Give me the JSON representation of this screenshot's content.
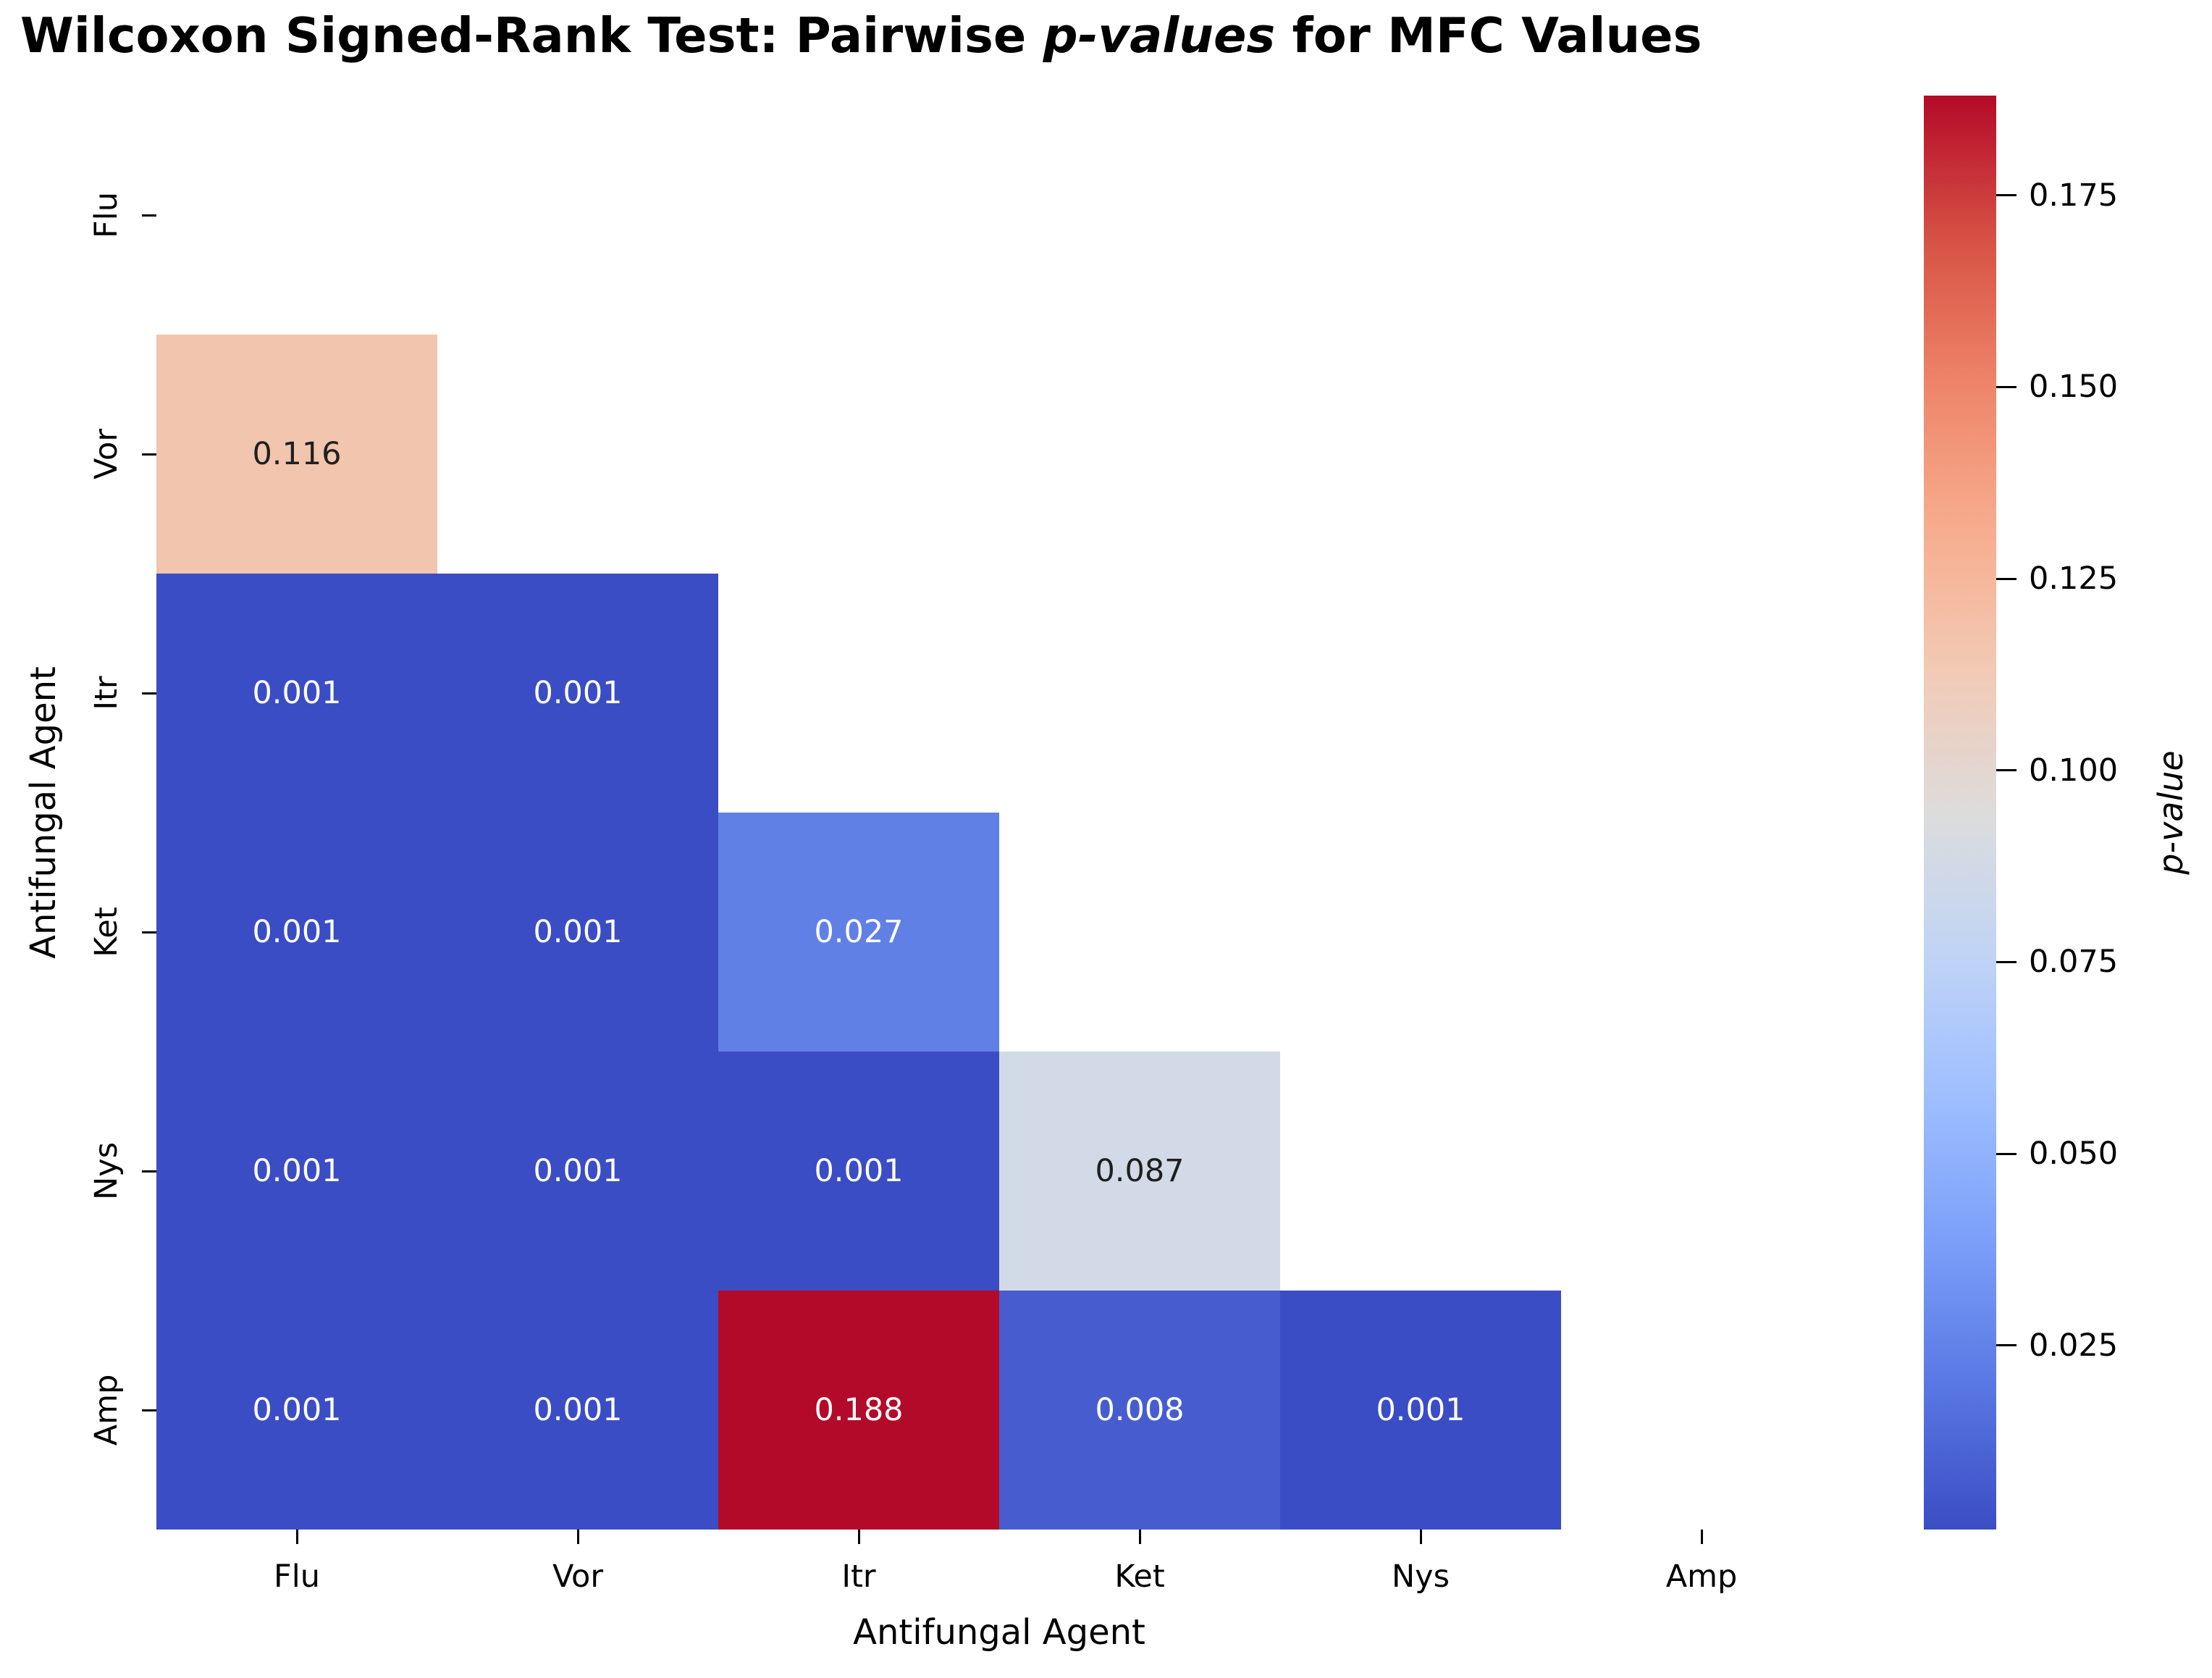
{
  "title": {
    "part1": "Wilcoxon Signed-Rank Test: Pairwise ",
    "part2_italic": "p-values",
    "part3": " for MFC Values"
  },
  "x_axis": {
    "label": "Antifungal Agent",
    "ticks": [
      "Flu",
      "Vor",
      "Itr",
      "Ket",
      "Nys",
      "Amp"
    ]
  },
  "y_axis": {
    "label": "Antifungal Agent",
    "ticks": [
      "Flu",
      "Vor",
      "Itr",
      "Ket",
      "Nys",
      "Amp"
    ]
  },
  "colorbar": {
    "label": "p-value",
    "vmin": 0.001,
    "vmax": 0.188,
    "tick_labels": [
      "0.175",
      "0.150",
      "0.125",
      "0.100",
      "0.075",
      "0.050",
      "0.025"
    ],
    "gradient_top_to_bottom": [
      "#b40a29",
      "#d65244",
      "#ee8468",
      "#f7ac8e",
      "#f2cab5",
      "#dddcdc",
      "#c0d4f5",
      "#9ebeff",
      "#7b9ff9",
      "#5977e3",
      "#3b4dc4"
    ]
  },
  "chart_data": {
    "type": "heatmap",
    "title": "Wilcoxon Signed-Rank Test: Pairwise p-values for MFC Values",
    "xlabel": "Antifungal Agent",
    "ylabel": "Antifungal Agent",
    "categories": [
      "Flu",
      "Vor",
      "Itr",
      "Ket",
      "Nys",
      "Amp"
    ],
    "mask": "upper triangle including diagonal (only lower-triangle pairwise cells shown)",
    "colormap": "coolwarm",
    "colorbar_label": "p-value",
    "value_range": [
      0.001,
      0.188
    ],
    "cells": [
      {
        "row": "Vor",
        "col": "Flu",
        "value": "0.116",
        "bg": "#f2c5ae",
        "fg": "#1f1f1f"
      },
      {
        "row": "Itr",
        "col": "Flu",
        "value": "0.001",
        "bg": "#3b4dc4",
        "fg": "#ffffff"
      },
      {
        "row": "Itr",
        "col": "Vor",
        "value": "0.001",
        "bg": "#3b4dc4",
        "fg": "#ffffff"
      },
      {
        "row": "Ket",
        "col": "Flu",
        "value": "0.001",
        "bg": "#3b4dc4",
        "fg": "#ffffff"
      },
      {
        "row": "Ket",
        "col": "Vor",
        "value": "0.001",
        "bg": "#3b4dc4",
        "fg": "#ffffff"
      },
      {
        "row": "Ket",
        "col": "Itr",
        "value": "0.027",
        "bg": "#6080e5",
        "fg": "#ffffff"
      },
      {
        "row": "Nys",
        "col": "Flu",
        "value": "0.001",
        "bg": "#3b4dc4",
        "fg": "#ffffff"
      },
      {
        "row": "Nys",
        "col": "Vor",
        "value": "0.001",
        "bg": "#3b4dc4",
        "fg": "#ffffff"
      },
      {
        "row": "Nys",
        "col": "Itr",
        "value": "0.001",
        "bg": "#3b4dc4",
        "fg": "#ffffff"
      },
      {
        "row": "Nys",
        "col": "Ket",
        "value": "0.087",
        "bg": "#d2dae7",
        "fg": "#1f1f1f"
      },
      {
        "row": "Amp",
        "col": "Flu",
        "value": "0.001",
        "bg": "#3b4dc4",
        "fg": "#ffffff"
      },
      {
        "row": "Amp",
        "col": "Vor",
        "value": "0.001",
        "bg": "#3b4dc4",
        "fg": "#ffffff"
      },
      {
        "row": "Amp",
        "col": "Itr",
        "value": "0.188",
        "bg": "#b40a29",
        "fg": "#ffffff"
      },
      {
        "row": "Amp",
        "col": "Ket",
        "value": "0.008",
        "bg": "#475dcf",
        "fg": "#ffffff"
      },
      {
        "row": "Amp",
        "col": "Nys",
        "value": "0.001",
        "bg": "#3b4dc4",
        "fg": "#ffffff"
      }
    ]
  }
}
